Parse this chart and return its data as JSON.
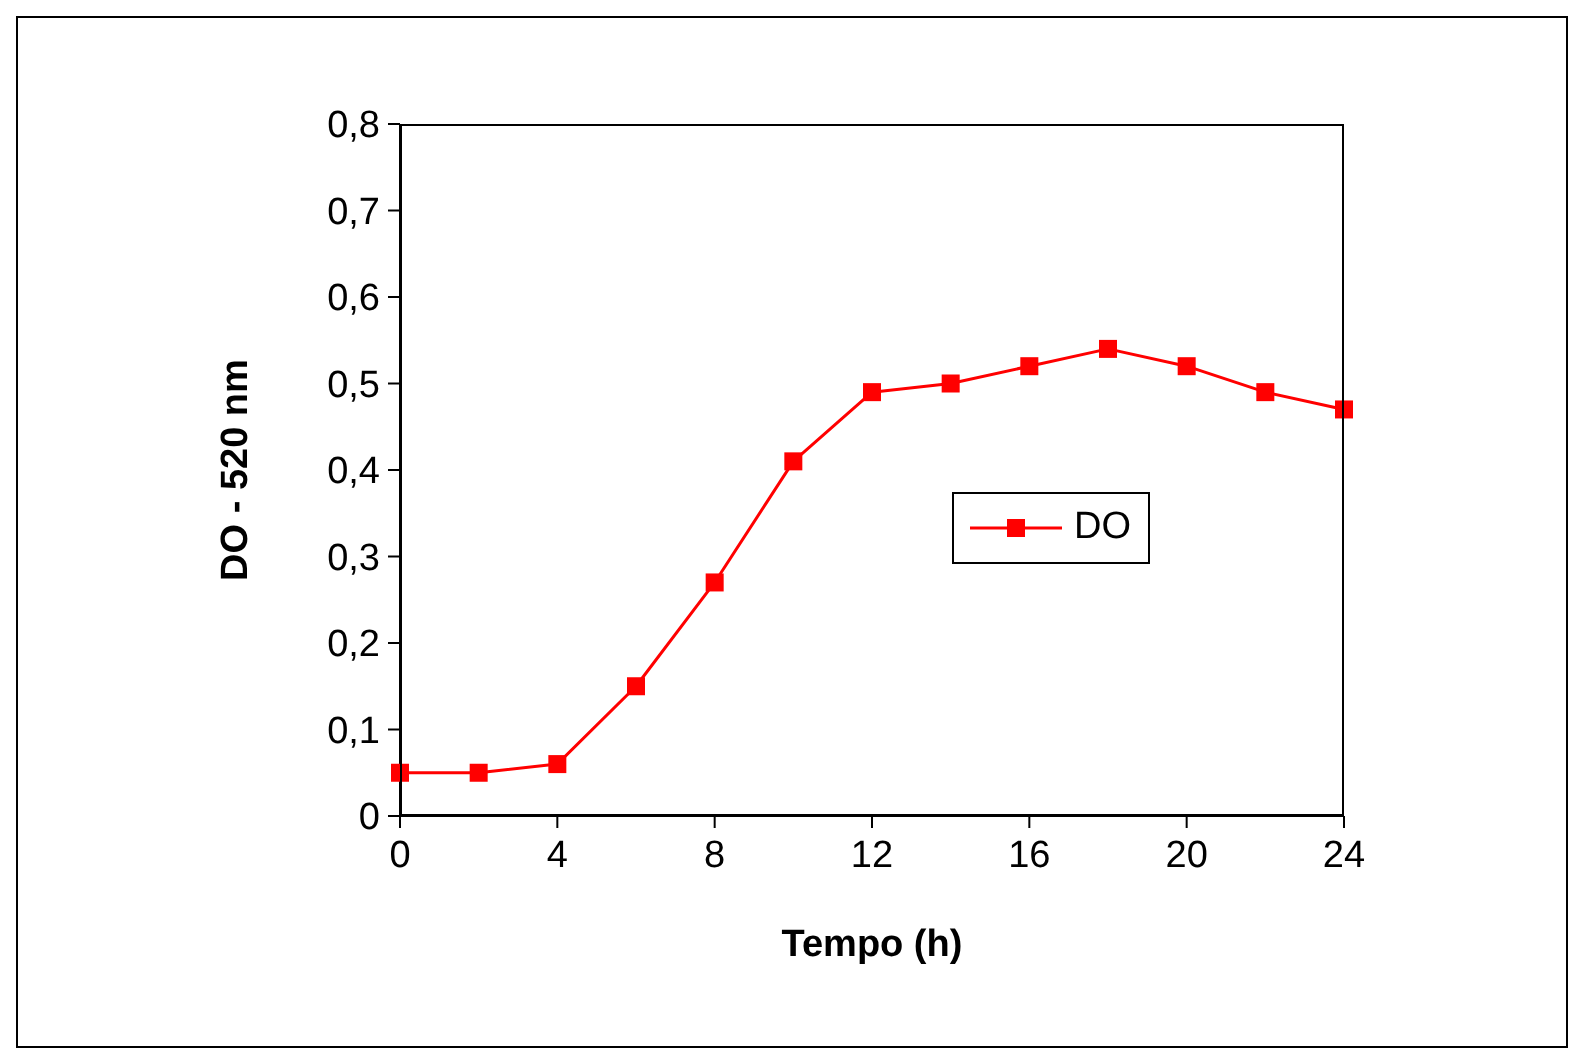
{
  "chart_data": {
    "type": "line",
    "xlabel": "Tempo (h)",
    "ylabel": "DO - 520 nm",
    "x": [
      0,
      2,
      4,
      6,
      8,
      10,
      12,
      14,
      16,
      18,
      20,
      22,
      24
    ],
    "series": [
      {
        "name": "DO",
        "color": "#ff0000",
        "values": [
          0.05,
          0.05,
          0.06,
          0.15,
          0.27,
          0.41,
          0.49,
          0.5,
          0.52,
          0.54,
          0.52,
          0.49,
          0.47
        ]
      }
    ],
    "xlim": [
      0,
      24
    ],
    "xticks": [
      0,
      4,
      8,
      12,
      16,
      20,
      24
    ],
    "ylim": [
      0,
      0.8
    ],
    "yticks": [
      0,
      {
        "value": 0.1,
        "label": "0,1"
      },
      {
        "value": 0.2,
        "label": "0,2"
      },
      {
        "value": 0.3,
        "label": "0,3"
      },
      {
        "value": 0.4,
        "label": "0,4"
      },
      {
        "value": 0.5,
        "label": "0,5"
      },
      {
        "value": 0.6,
        "label": "0,6"
      },
      {
        "value": 0.7,
        "label": "0,7"
      },
      {
        "value": 0.8,
        "label": "0,8"
      }
    ],
    "grid": false,
    "legend": "right",
    "marker": "square",
    "line_style": "solid"
  }
}
